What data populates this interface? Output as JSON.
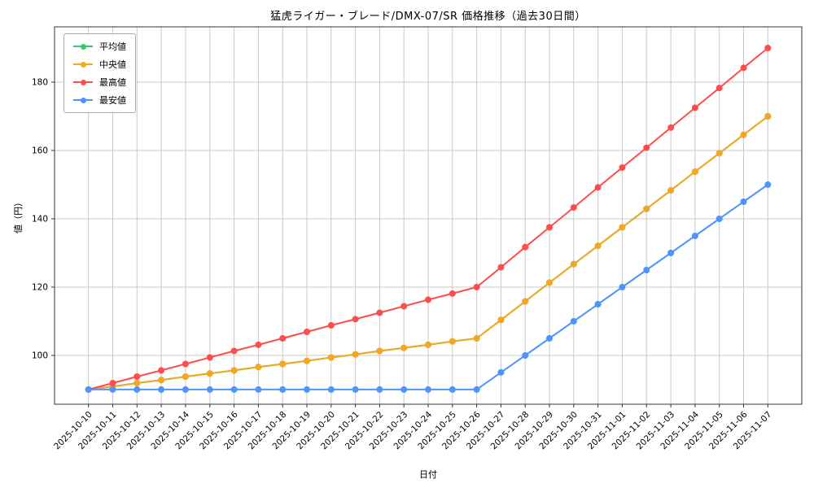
{
  "chart_data": {
    "type": "line",
    "title": "猛虎ライガー・ブレード/DMX-07/SR 価格推移（過去30日間）",
    "xlabel": "日付",
    "ylabel": "値（円）",
    "grid": true,
    "grid_color": "#c9c9c9",
    "legend_position": "upper-left",
    "marker": "circle",
    "yticks": [
      100,
      120,
      140,
      160,
      180
    ],
    "ylim": [
      85.7,
      196.2
    ],
    "categories": [
      "2025-10-10",
      "2025-10-11",
      "2025-10-12",
      "2025-10-13",
      "2025-10-14",
      "2025-10-15",
      "2025-10-16",
      "2025-10-17",
      "2025-10-18",
      "2025-10-19",
      "2025-10-20",
      "2025-10-21",
      "2025-10-22",
      "2025-10-23",
      "2025-10-24",
      "2025-10-25",
      "2025-10-26",
      "2025-10-27",
      "2025-10-28",
      "2025-10-29",
      "2025-10-30",
      "2025-10-31",
      "2025-11-01",
      "2025-11-02",
      "2025-11-03",
      "2025-11-04",
      "2025-11-05",
      "2025-11-06",
      "2025-11-07"
    ],
    "series": [
      {
        "name": "平均値",
        "color": "#2ecc71",
        "values": [
          90,
          90.9,
          91.9,
          92.8,
          93.8,
          94.7,
          95.6,
          96.6,
          97.5,
          98.4,
          99.4,
          100.3,
          101.3,
          102.2,
          103.1,
          104.1,
          105,
          110.4,
          115.8,
          121.3,
          126.7,
          132.1,
          137.5,
          142.9,
          148.3,
          153.8,
          159.2,
          164.6,
          170
        ]
      },
      {
        "name": "中央値",
        "color": "#f5a623",
        "values": [
          90,
          90.9,
          91.9,
          92.8,
          93.8,
          94.7,
          95.6,
          96.6,
          97.5,
          98.4,
          99.4,
          100.3,
          101.3,
          102.2,
          103.1,
          104.1,
          105,
          110.4,
          115.8,
          121.3,
          126.7,
          132.1,
          137.5,
          142.9,
          148.3,
          153.8,
          159.2,
          164.6,
          170
        ]
      },
      {
        "name": "最高値",
        "color": "#ff4d4d",
        "values": [
          90,
          91.9,
          93.8,
          95.6,
          97.5,
          99.4,
          101.3,
          103.1,
          105,
          106.9,
          108.8,
          110.6,
          112.5,
          114.4,
          116.3,
          118.1,
          120,
          125.8,
          131.7,
          137.5,
          143.3,
          149.2,
          155,
          160.8,
          166.7,
          172.5,
          178.3,
          184.2,
          190
        ]
      },
      {
        "name": "最安値",
        "color": "#4d94ff",
        "values": [
          90,
          90,
          90,
          90,
          90,
          90,
          90,
          90,
          90,
          90,
          90,
          90,
          90,
          90,
          90,
          90,
          90,
          95,
          100,
          105,
          110,
          115,
          120,
          125,
          130,
          135,
          140,
          145,
          150
        ]
      }
    ]
  }
}
